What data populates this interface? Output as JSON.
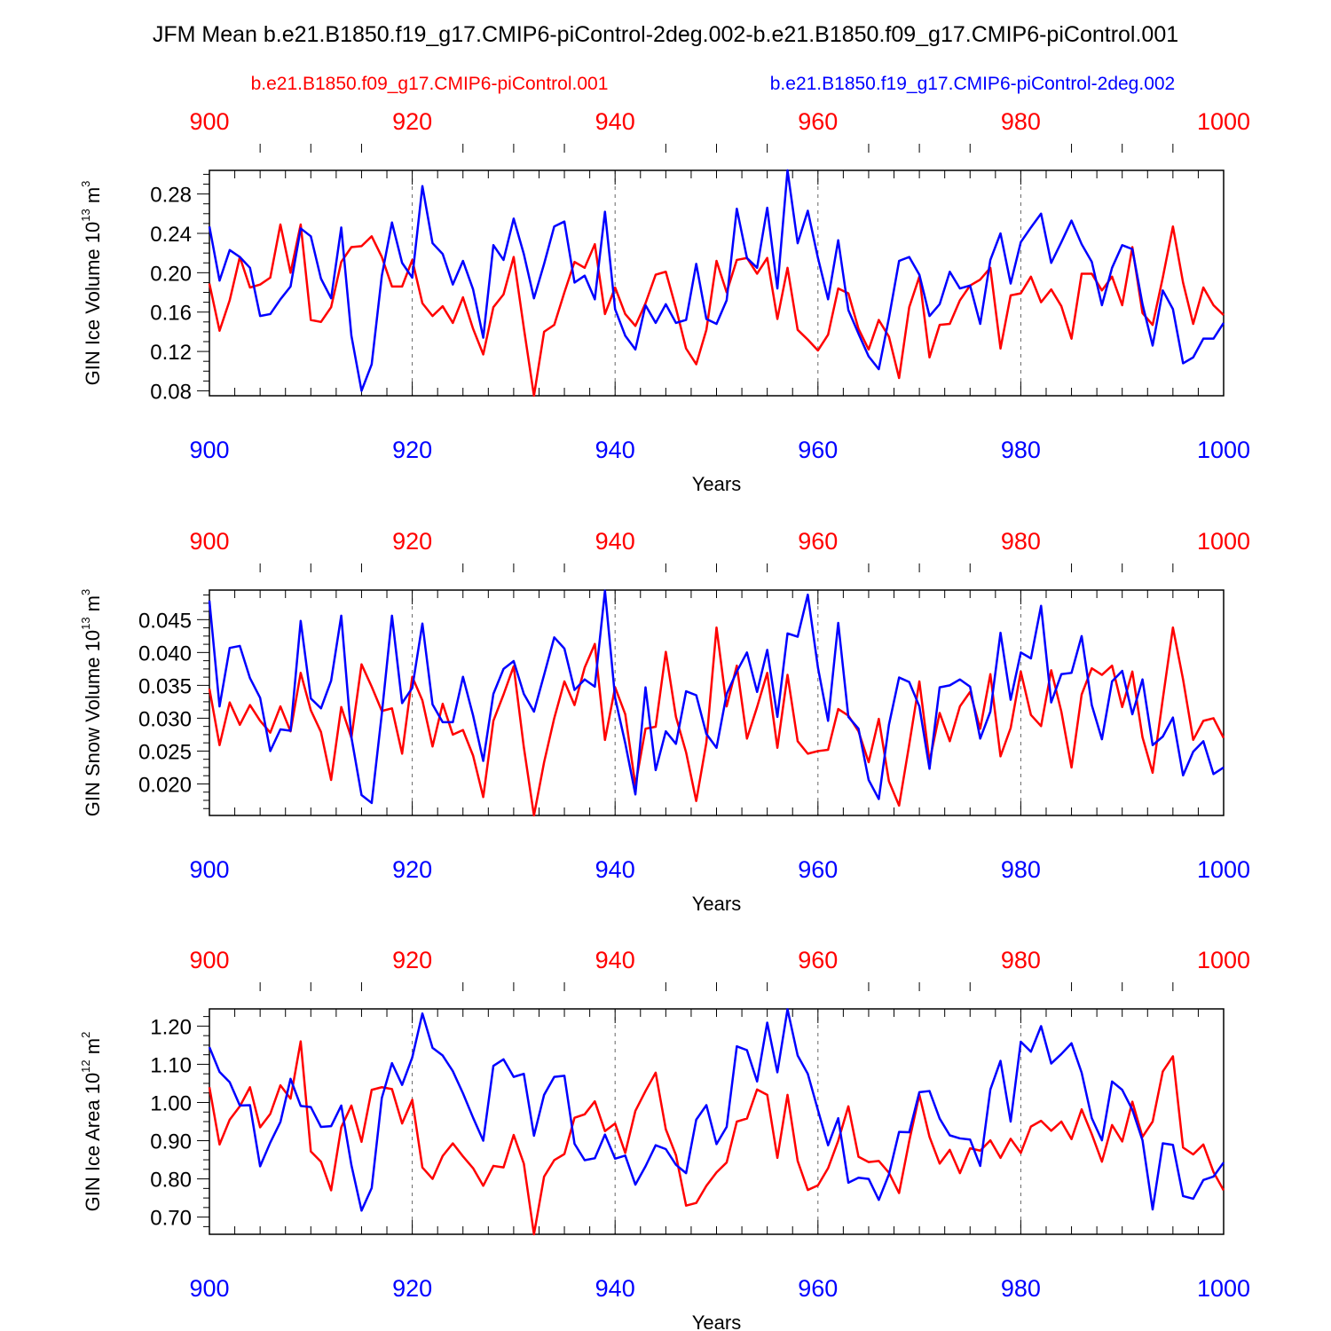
{
  "figure": {
    "title": "JFM Mean b.e21.B1850.f19_g17.CMIP6-piControl-2deg.002-b.e21.B1850.f09_g17.CMIP6-piControl.001",
    "legend": {
      "red_label": "b.e21.B1850.f09_g17.CMIP6-piControl.001",
      "blue_label": "b.e21.B1850.f19_g17.CMIP6-piControl-2deg.002"
    },
    "colors": {
      "red": "#ff0000",
      "blue": "#0000ff",
      "axis": "#000000"
    }
  },
  "chart_data": [
    {
      "type": "line",
      "ylabel": {
        "text": "GIN Ice Volume 10",
        "exp": "13",
        "unit": " m",
        "unit_exp": "3"
      },
      "xlabel": "Years",
      "xlim": [
        900,
        1000
      ],
      "ylim": [
        0.075,
        0.304
      ],
      "xticks": [
        "900",
        "920",
        "940",
        "960",
        "980",
        "1000"
      ],
      "yticks": [
        "0.08",
        "0.12",
        "0.16",
        "0.20",
        "0.24",
        "0.28"
      ],
      "ytick_values": [
        0.08,
        0.12,
        0.16,
        0.2,
        0.24,
        0.28
      ],
      "x_start": 900,
      "series": [
        {
          "name": "b.e21.B1850.f09_g17.CMIP6-piControl.001",
          "color": "red",
          "values": [
            0.189,
            0.141,
            0.172,
            0.216,
            0.185,
            0.188,
            0.195,
            0.249,
            0.2,
            0.249,
            0.152,
            0.15,
            0.165,
            0.211,
            0.226,
            0.227,
            0.237,
            0.216,
            0.186,
            0.186,
            0.213,
            0.169,
            0.156,
            0.166,
            0.149,
            0.175,
            0.143,
            0.117,
            0.165,
            0.178,
            0.216,
            0.144,
            0.075,
            0.14,
            0.147,
            0.18,
            0.211,
            0.205,
            0.229,
            0.158,
            0.185,
            0.158,
            0.146,
            0.169,
            0.198,
            0.201,
            0.164,
            0.123,
            0.107,
            0.142,
            0.212,
            0.18,
            0.213,
            0.215,
            0.199,
            0.215,
            0.153,
            0.205,
            0.142,
            0.132,
            0.121,
            0.137,
            0.184,
            0.179,
            0.143,
            0.122,
            0.152,
            0.135,
            0.093,
            0.165,
            0.196,
            0.114,
            0.147,
            0.148,
            0.172,
            0.187,
            0.193,
            0.205,
            0.123,
            0.177,
            0.179,
            0.196,
            0.17,
            0.183,
            0.166,
            0.133,
            0.199,
            0.199,
            0.182,
            0.196,
            0.167,
            0.226,
            0.159,
            0.147,
            0.195,
            0.247,
            0.19,
            0.148,
            0.185,
            0.167,
            0.157
          ]
        },
        {
          "name": "b.e21.B1850.f19_g17.CMIP6-piControl-2deg.002",
          "color": "blue",
          "values": [
            0.247,
            0.192,
            0.223,
            0.216,
            0.205,
            0.156,
            0.158,
            0.173,
            0.186,
            0.245,
            0.237,
            0.194,
            0.174,
            0.246,
            0.136,
            0.08,
            0.107,
            0.197,
            0.251,
            0.21,
            0.195,
            0.288,
            0.23,
            0.219,
            0.188,
            0.212,
            0.183,
            0.134,
            0.228,
            0.213,
            0.255,
            0.219,
            0.174,
            0.209,
            0.247,
            0.252,
            0.19,
            0.197,
            0.173,
            0.262,
            0.163,
            0.136,
            0.122,
            0.167,
            0.149,
            0.168,
            0.149,
            0.152,
            0.209,
            0.153,
            0.148,
            0.172,
            0.265,
            0.215,
            0.205,
            0.266,
            0.184,
            0.304,
            0.23,
            0.263,
            0.215,
            0.173,
            0.233,
            0.162,
            0.138,
            0.115,
            0.102,
            0.154,
            0.212,
            0.216,
            0.198,
            0.156,
            0.168,
            0.201,
            0.184,
            0.187,
            0.148,
            0.213,
            0.24,
            0.189,
            0.231,
            0.246,
            0.26,
            0.21,
            0.231,
            0.253,
            0.229,
            0.211,
            0.167,
            0.205,
            0.228,
            0.224,
            0.168,
            0.126,
            0.182,
            0.163,
            0.108,
            0.114,
            0.133,
            0.133,
            0.149
          ]
        }
      ]
    },
    {
      "type": "line",
      "ylabel": {
        "text": "GIN Snow Volume 10",
        "exp": "13",
        "unit": " m",
        "unit_exp": "3"
      },
      "xlabel": "Years",
      "xlim": [
        900,
        1000
      ],
      "ylim": [
        0.0152,
        0.0495
      ],
      "xticks": [
        "900",
        "920",
        "940",
        "960",
        "980",
        "1000"
      ],
      "yticks": [
        "0.020",
        "0.025",
        "0.030",
        "0.035",
        "0.040",
        "0.045"
      ],
      "ytick_values": [
        0.02,
        0.025,
        0.03,
        0.035,
        0.04,
        0.045
      ],
      "x_start": 900,
      "series": [
        {
          "name": "b.e21.B1850.f09_g17.CMIP6-piControl.001",
          "color": "red",
          "values": [
            0.0345,
            0.0259,
            0.0324,
            0.029,
            0.032,
            0.0296,
            0.0278,
            0.0318,
            0.028,
            0.0369,
            0.0312,
            0.0279,
            0.0206,
            0.0317,
            0.027,
            0.0382,
            0.0348,
            0.0311,
            0.0315,
            0.0246,
            0.0363,
            0.0327,
            0.0257,
            0.0322,
            0.0275,
            0.0282,
            0.0243,
            0.018,
            0.0296,
            0.0336,
            0.0379,
            0.0256,
            0.0152,
            0.0233,
            0.03,
            0.0356,
            0.032,
            0.0377,
            0.0413,
            0.0267,
            0.0347,
            0.0306,
            0.0198,
            0.0284,
            0.0287,
            0.0401,
            0.0302,
            0.0248,
            0.0174,
            0.0263,
            0.0438,
            0.0318,
            0.038,
            0.0269,
            0.0317,
            0.0369,
            0.0255,
            0.0366,
            0.0265,
            0.0246,
            0.025,
            0.0252,
            0.0314,
            0.0304,
            0.028,
            0.0233,
            0.0299,
            0.0204,
            0.0167,
            0.026,
            0.0356,
            0.0234,
            0.0308,
            0.0265,
            0.0318,
            0.034,
            0.0284,
            0.0367,
            0.0242,
            0.0285,
            0.0371,
            0.0305,
            0.0288,
            0.0373,
            0.031,
            0.0225,
            0.0336,
            0.0376,
            0.0366,
            0.038,
            0.0317,
            0.0371,
            0.0271,
            0.0217,
            0.0329,
            0.0438,
            0.0359,
            0.0267,
            0.0296,
            0.03,
            0.027
          ]
        },
        {
          "name": "b.e21.B1850.f19_g17.CMIP6-piControl-2deg.002",
          "color": "blue",
          "values": [
            0.0479,
            0.0318,
            0.0407,
            0.041,
            0.0361,
            0.0331,
            0.025,
            0.0283,
            0.0281,
            0.0448,
            0.033,
            0.0315,
            0.0357,
            0.0456,
            0.0271,
            0.0183,
            0.0171,
            0.0307,
            0.0456,
            0.0323,
            0.0346,
            0.0444,
            0.0321,
            0.0294,
            0.0294,
            0.0363,
            0.0304,
            0.0235,
            0.0337,
            0.0375,
            0.0387,
            0.0337,
            0.031,
            0.0366,
            0.0423,
            0.0406,
            0.0343,
            0.0359,
            0.0348,
            0.0494,
            0.0331,
            0.0262,
            0.0184,
            0.0347,
            0.0221,
            0.028,
            0.0261,
            0.0341,
            0.0335,
            0.0276,
            0.0255,
            0.0337,
            0.0371,
            0.04,
            0.034,
            0.0404,
            0.0302,
            0.0429,
            0.0424,
            0.0488,
            0.0377,
            0.0296,
            0.0445,
            0.0302,
            0.0284,
            0.0206,
            0.0177,
            0.029,
            0.0362,
            0.0355,
            0.0318,
            0.0223,
            0.0347,
            0.035,
            0.0359,
            0.0348,
            0.0269,
            0.031,
            0.043,
            0.0328,
            0.04,
            0.0391,
            0.0471,
            0.0324,
            0.0367,
            0.0369,
            0.0425,
            0.032,
            0.0268,
            0.0356,
            0.0372,
            0.0306,
            0.0359,
            0.0259,
            0.0272,
            0.0301,
            0.0213,
            0.0249,
            0.0265,
            0.0215,
            0.0225
          ]
        }
      ]
    },
    {
      "type": "line",
      "ylabel": {
        "text": "GIN Ice Area 10",
        "exp": "12",
        "unit": " m",
        "unit_exp": "2"
      },
      "xlabel": "Years",
      "xlim": [
        900,
        1000
      ],
      "ylim": [
        0.655,
        1.245
      ],
      "xticks": [
        "900",
        "920",
        "940",
        "960",
        "980",
        "1000"
      ],
      "yticks": [
        "0.70",
        "0.80",
        "0.90",
        "1.00",
        "1.10",
        "1.20"
      ],
      "ytick_values": [
        0.7,
        0.8,
        0.9,
        1.0,
        1.1,
        1.2
      ],
      "x_start": 900,
      "series": [
        {
          "name": "b.e21.B1850.f09_g17.CMIP6-piControl.001",
          "color": "red",
          "values": [
            1.04,
            0.89,
            0.955,
            0.99,
            1.04,
            0.935,
            0.97,
            1.045,
            1.01,
            1.16,
            0.872,
            0.845,
            0.77,
            0.935,
            0.992,
            0.897,
            1.033,
            1.04,
            1.035,
            0.945,
            1.007,
            0.83,
            0.8,
            0.86,
            0.893,
            0.859,
            0.828,
            0.782,
            0.834,
            0.83,
            0.915,
            0.84,
            0.655,
            0.806,
            0.849,
            0.865,
            0.96,
            0.969,
            1.003,
            0.925,
            0.945,
            0.868,
            0.978,
            1.03,
            1.078,
            0.93,
            0.862,
            0.73,
            0.737,
            0.782,
            0.817,
            0.843,
            0.95,
            0.958,
            1.034,
            1.02,
            0.855,
            1.02,
            0.847,
            0.771,
            0.783,
            0.828,
            0.9,
            0.99,
            0.858,
            0.844,
            0.847,
            0.816,
            0.763,
            0.899,
            1.02,
            0.91,
            0.84,
            0.876,
            0.815,
            0.88,
            0.874,
            0.901,
            0.855,
            0.905,
            0.868,
            0.937,
            0.952,
            0.926,
            0.95,
            0.904,
            0.982,
            0.917,
            0.845,
            0.941,
            0.898,
            1.002,
            0.91,
            0.95,
            1.081,
            1.121,
            0.882,
            0.864,
            0.89,
            0.818,
            0.77
          ]
        },
        {
          "name": "b.e21.B1850.f19_g17.CMIP6-piControl-2deg.002",
          "color": "blue",
          "values": [
            1.145,
            1.08,
            1.053,
            0.992,
            0.993,
            0.833,
            0.895,
            0.949,
            1.062,
            0.991,
            0.988,
            0.936,
            0.938,
            0.992,
            0.836,
            0.717,
            0.776,
            1.012,
            1.103,
            1.046,
            1.118,
            1.233,
            1.143,
            1.123,
            1.082,
            1.024,
            0.96,
            0.9,
            1.096,
            1.113,
            1.067,
            1.075,
            0.913,
            1.02,
            1.067,
            1.07,
            0.892,
            0.849,
            0.854,
            0.916,
            0.853,
            0.861,
            0.785,
            0.833,
            0.888,
            0.878,
            0.837,
            0.815,
            0.955,
            0.993,
            0.891,
            0.936,
            1.147,
            1.137,
            1.055,
            1.209,
            1.079,
            1.244,
            1.123,
            1.075,
            0.98,
            0.888,
            0.959,
            0.79,
            0.803,
            0.8,
            0.745,
            0.812,
            0.923,
            0.922,
            1.027,
            1.03,
            0.958,
            0.914,
            0.906,
            0.903,
            0.834,
            1.034,
            1.109,
            0.95,
            1.159,
            1.133,
            1.2,
            1.102,
            1.127,
            1.155,
            1.078,
            0.959,
            0.901,
            1.055,
            1.033,
            0.981,
            0.901,
            0.72,
            0.893,
            0.889,
            0.755,
            0.748,
            0.797,
            0.806,
            0.843
          ]
        }
      ]
    }
  ]
}
